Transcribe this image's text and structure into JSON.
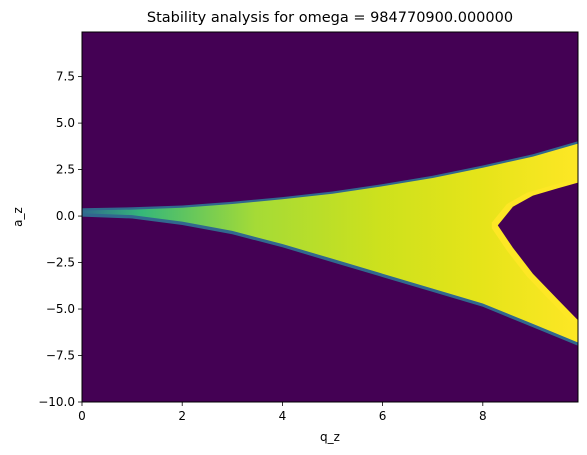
{
  "chart_data": {
    "type": "heatmap",
    "title": "Stability analysis for omega = 984770900.000000",
    "xlabel": "q_z",
    "ylabel": "a_z",
    "xlim": [
      0,
      9.9
    ],
    "ylim": [
      -10,
      9.9
    ],
    "x_ticks": [
      {
        "value": 0,
        "label": "0"
      },
      {
        "value": 2,
        "label": "2"
      },
      {
        "value": 4,
        "label": "4"
      },
      {
        "value": 6,
        "label": "6"
      },
      {
        "value": 8,
        "label": "8"
      }
    ],
    "y_ticks": [
      {
        "value": -10,
        "label": "−10.0"
      },
      {
        "value": -7.5,
        "label": "−7.5"
      },
      {
        "value": -5,
        "label": "−5.0"
      },
      {
        "value": -2.5,
        "label": "−2.5"
      },
      {
        "value": 0,
        "label": "0.0"
      },
      {
        "value": 2.5,
        "label": "2.5"
      },
      {
        "value": 5,
        "label": "5.0"
      },
      {
        "value": 7.5,
        "label": "7.5"
      }
    ],
    "colormap": "viridis",
    "background_color": "#440154",
    "stable_region": {
      "upper_boundary": [
        [
          0,
          0.3
        ],
        [
          1,
          0.35
        ],
        [
          2,
          0.45
        ],
        [
          3,
          0.65
        ],
        [
          4,
          0.9
        ],
        [
          5,
          1.2
        ],
        [
          6,
          1.6
        ],
        [
          7,
          2.05
        ],
        [
          8,
          2.6
        ],
        [
          9,
          3.2
        ],
        [
          9.9,
          3.9
        ]
      ],
      "lower_boundary": [
        [
          0,
          0.15
        ],
        [
          1,
          0.05
        ],
        [
          2,
          -0.3
        ],
        [
          3,
          -0.8
        ],
        [
          4,
          -1.5
        ],
        [
          5,
          -2.3
        ],
        [
          6,
          -3.1
        ],
        [
          7,
          -3.9
        ],
        [
          8,
          -4.7
        ],
        [
          9,
          -5.8
        ],
        [
          9.9,
          -6.8
        ]
      ],
      "inner_unstable_tip": [
        8.3,
        -0.5
      ],
      "inner_upper_boundary": [
        [
          8.3,
          -0.5
        ],
        [
          8.6,
          0.5
        ],
        [
          9,
          1.1
        ],
        [
          9.5,
          1.5
        ],
        [
          9.9,
          1.8
        ]
      ],
      "inner_lower_boundary": [
        [
          8.3,
          -0.5
        ],
        [
          8.6,
          -1.7
        ],
        [
          9,
          -3.1
        ],
        [
          9.5,
          -4.5
        ],
        [
          9.9,
          -5.6
        ]
      ]
    }
  }
}
